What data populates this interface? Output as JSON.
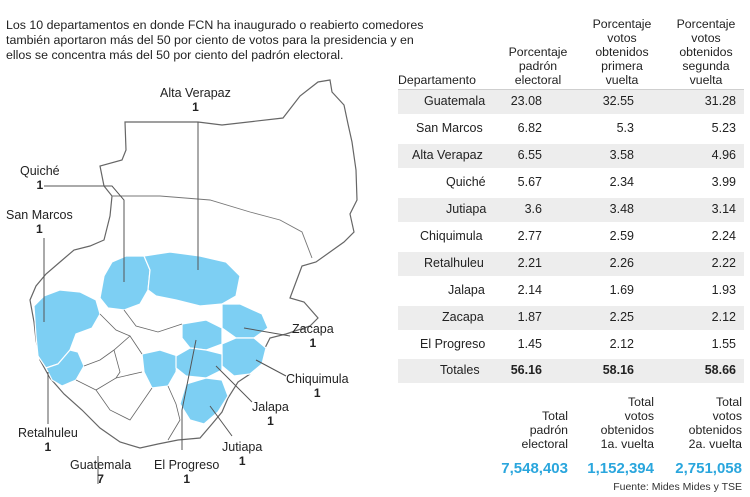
{
  "intro": {
    "line1": "Los 10 departamentos en donde FCN ha inaugurado o reabierto comedores",
    "line2": "también aportaron más del 50 por ciento de votos para la presidencia y en",
    "line3": "ellos se  concentra más del 50 por ciento del padrón electoral."
  },
  "map_labels": [
    {
      "name": "Alta Verapaz",
      "count": "1"
    },
    {
      "name": "Quiché",
      "count": "1"
    },
    {
      "name": "San Marcos",
      "count": "1"
    },
    {
      "name": "Zacapa",
      "count": "1"
    },
    {
      "name": "Chiquimula",
      "count": "1"
    },
    {
      "name": "Jalapa",
      "count": "1"
    },
    {
      "name": "Retalhuleu",
      "count": "1"
    },
    {
      "name": "Guatemala",
      "count": "7"
    },
    {
      "name": "El Progreso",
      "count": "1"
    },
    {
      "name": "Jutiapa",
      "count": "1"
    }
  ],
  "colors": {
    "highlight": "#7dcff3",
    "outline": "#666666",
    "accent": "#2aa6dd"
  },
  "table": {
    "headers": {
      "department": "Departamento",
      "padron": [
        "Porcentaje",
        "padrón",
        "electoral"
      ],
      "primera": [
        "Porcentaje",
        "votos",
        "obtenidos",
        "primera",
        "vuelta"
      ],
      "segunda": [
        "Porcentaje",
        "votos",
        "obtenidos",
        "segunda",
        "vuelta"
      ]
    },
    "rows": [
      {
        "dept": "Guatemala",
        "padron": "23.08",
        "primera": "32.55",
        "segunda": "31.28"
      },
      {
        "dept": "San Marcos",
        "padron": "6.82",
        "primera": "5.3",
        "segunda": "5.23"
      },
      {
        "dept": "Alta Verapaz",
        "padron": "6.55",
        "primera": "3.58",
        "segunda": "4.96"
      },
      {
        "dept": "Quiché",
        "padron": "5.67",
        "primera": "2.34",
        "segunda": "3.99"
      },
      {
        "dept": "Jutiapa",
        "padron": "3.6",
        "primera": "3.48",
        "segunda": "3.14"
      },
      {
        "dept": "Chiquimula",
        "padron": "2.77",
        "primera": "2.59",
        "segunda": "2.24"
      },
      {
        "dept": "Retalhuleu",
        "padron": "2.21",
        "primera": "2.26",
        "segunda": "2.22"
      },
      {
        "dept": "Jalapa",
        "padron": "2.14",
        "primera": "1.69",
        "segunda": "1.93"
      },
      {
        "dept": "Zacapa",
        "padron": "1.87",
        "primera": "2.25",
        "segunda": "2.12"
      },
      {
        "dept": "El Progreso",
        "padron": "1.45",
        "primera": "2.12",
        "segunda": "1.55"
      }
    ],
    "totals": {
      "label": "Totales",
      "padron": "56.16",
      "primera": "58.16",
      "segunda": "58.66"
    },
    "summary": {
      "padron_label": [
        "Total",
        "padrón",
        "electoral"
      ],
      "padron_value": "7,548,403",
      "primera_label": [
        "Total",
        "votos",
        "obtenidos",
        "1a. vuelta"
      ],
      "primera_value": "1,152,394",
      "segunda_label": [
        "Total",
        "votos",
        "obtenidos",
        "2a. vuelta"
      ],
      "segunda_value": "2,751,058"
    },
    "source": "Fuente: Mides Mides y TSE"
  },
  "chart_data": {
    "type": "table",
    "columns": [
      "Departamento",
      "Porcentaje padrón electoral",
      "Porcentaje votos obtenidos primera vuelta",
      "Porcentaje votos obtenidos segunda vuelta"
    ],
    "rows": [
      [
        "Guatemala",
        23.08,
        32.55,
        31.28
      ],
      [
        "San Marcos",
        6.82,
        5.3,
        5.23
      ],
      [
        "Alta Verapaz",
        6.55,
        3.58,
        4.96
      ],
      [
        "Quiché",
        5.67,
        2.34,
        3.99
      ],
      [
        "Jutiapa",
        3.6,
        3.48,
        3.14
      ],
      [
        "Chiquimula",
        2.77,
        2.59,
        2.24
      ],
      [
        "Retalhuleu",
        2.21,
        2.26,
        2.22
      ],
      [
        "Jalapa",
        2.14,
        1.69,
        1.93
      ],
      [
        "Zacapa",
        1.87,
        2.25,
        2.12
      ],
      [
        "El Progreso",
        1.45,
        2.12,
        1.55
      ]
    ],
    "totals": [
      "Totales",
      56.16,
      58.16,
      58.66
    ],
    "summary": {
      "Total padrón electoral": 7548403,
      "Total votos obtenidos 1a. vuelta": 1152394,
      "Total votos obtenidos 2a. vuelta": 2751058
    }
  }
}
